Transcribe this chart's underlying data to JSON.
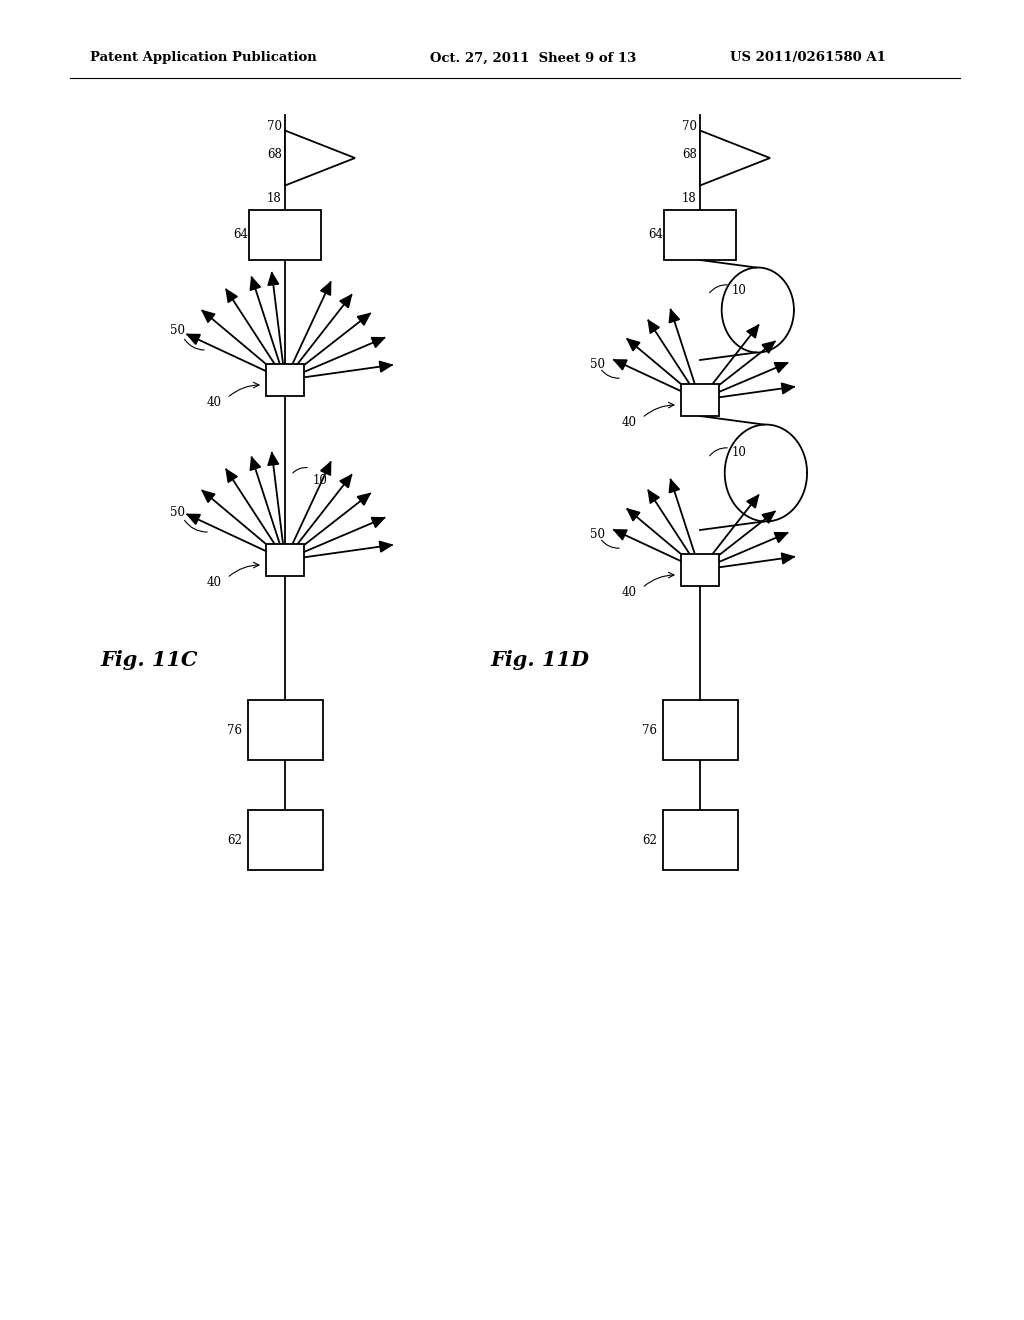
{
  "bg_color": "#ffffff",
  "line_color": "#000000",
  "header_left": "Patent Application Publication",
  "header_mid": "Oct. 27, 2011  Sheet 9 of 13",
  "header_right": "US 2011/0261580 A1",
  "fig_label_C": "Fig. 11C",
  "fig_label_D": "Fig. 11D"
}
